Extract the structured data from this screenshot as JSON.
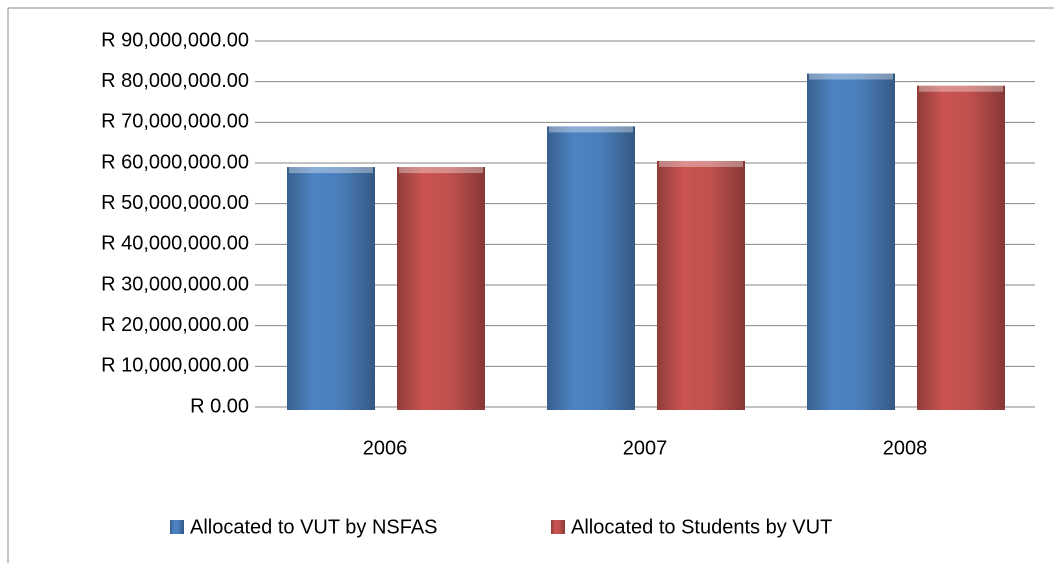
{
  "chart_data": {
    "type": "bar",
    "categories": [
      "2006",
      "2007",
      "2008"
    ],
    "series": [
      {
        "name": "Allocated to VUT by NSFAS",
        "color": "#4a7ebb",
        "values": [
          59000000,
          69000000,
          82000000
        ]
      },
      {
        "name": "Allocated to Students by VUT",
        "color": "#c0504d",
        "values": [
          59000000,
          60500000,
          79000000
        ]
      }
    ],
    "ylim": [
      0,
      90000000
    ],
    "yticks": [
      {
        "value": 0,
        "label": "R 0.00"
      },
      {
        "value": 10000000,
        "label": "R 10,000,000.00"
      },
      {
        "value": 20000000,
        "label": "R 20,000,000.00"
      },
      {
        "value": 30000000,
        "label": "R 30,000,000.00"
      },
      {
        "value": 40000000,
        "label": "R 40,000,000.00"
      },
      {
        "value": 50000000,
        "label": "R 50,000,000.00"
      },
      {
        "value": 60000000,
        "label": "R 60,000,000.00"
      },
      {
        "value": 70000000,
        "label": "R 70,000,000.00"
      },
      {
        "value": 80000000,
        "label": "R 80,000,000.00"
      },
      {
        "value": 90000000,
        "label": "R 90,000,000.00"
      }
    ],
    "grid": true,
    "legend": "bottom"
  }
}
